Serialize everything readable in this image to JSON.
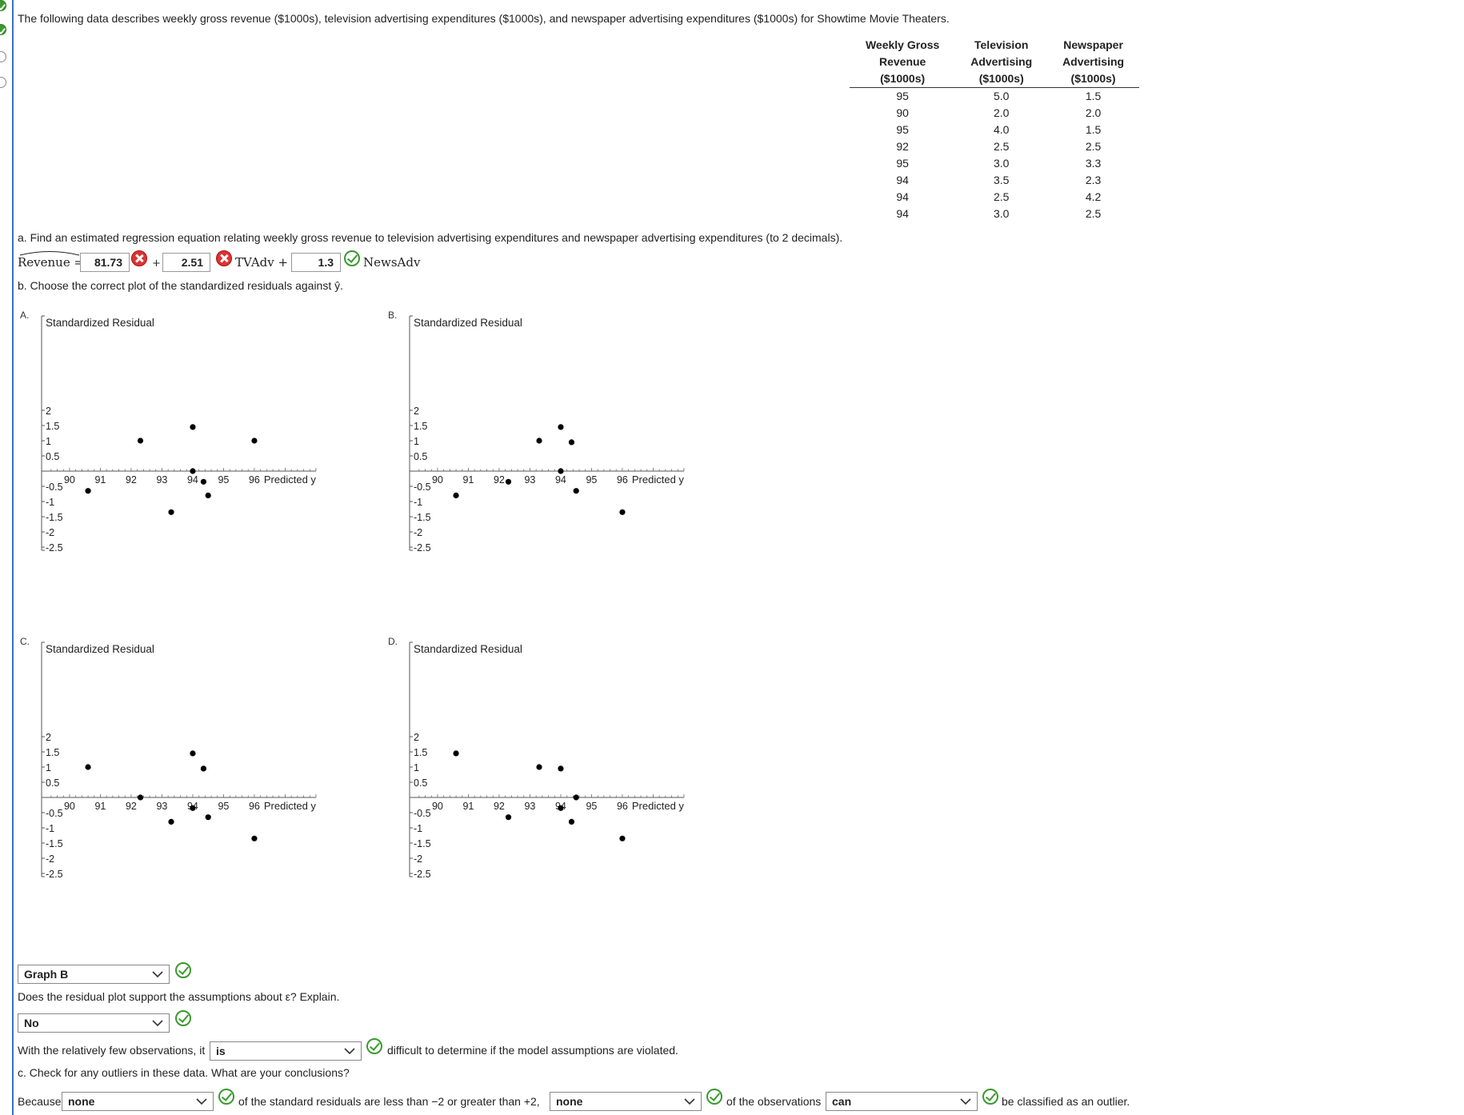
{
  "intro": "The following data describes weekly gross revenue ($1000s), television advertising expenditures ($1000s), and newspaper advertising expenditures ($1000s) for Showtime Movie Theaters.",
  "table": {
    "headers": [
      [
        "Weekly Gross",
        "Revenue",
        "($1000s)"
      ],
      [
        "Television",
        "Advertising",
        "($1000s)"
      ],
      [
        "Newspaper",
        "Advertising",
        "($1000s)"
      ]
    ],
    "rows": [
      [
        "95",
        "5.0",
        "1.5"
      ],
      [
        "90",
        "2.0",
        "2.0"
      ],
      [
        "95",
        "4.0",
        "1.5"
      ],
      [
        "92",
        "2.5",
        "2.5"
      ],
      [
        "95",
        "3.0",
        "3.3"
      ],
      [
        "94",
        "3.5",
        "2.3"
      ],
      [
        "94",
        "2.5",
        "4.2"
      ],
      [
        "94",
        "3.0",
        "2.5"
      ]
    ]
  },
  "part_a": {
    "question": "a. Find an estimated regression equation relating weekly gross revenue to television advertising expenditures and newspaper advertising expenditures (to 2 decimals).",
    "lhs": "Revenue =",
    "intercept": "81.73",
    "plus1": "+",
    "tv_coef": "2.51",
    "tv_label": "TVAdv +",
    "news_coef": "1.3",
    "news_label": "NewsAdv"
  },
  "part_b": {
    "question": "b. Choose the correct plot of the standardized residuals against ŷ.",
    "graph_select": "Graph B",
    "support_question": "Does the residual plot support the assumptions about ε? Explain.",
    "support_select": "No",
    "few_obs_prefix": "With the relatively few observations, it",
    "few_obs_select": "is",
    "few_obs_suffix": "difficult to determine if the model assumptions are violated."
  },
  "part_c": {
    "question": "c. Check for any outliers in these data. What are your conclusions?",
    "because": "Because",
    "select1": "none",
    "mid1": "of the standard residuals are less than −2 or greater than +2,",
    "select2": "none",
    "mid2": "of the observations",
    "select3": "can",
    "end": "be classified as an outlier."
  },
  "plots": {
    "ylabel": "Standardized Residual",
    "xlabel": "Predicted y",
    "y_ticks": [
      "2",
      "1.5",
      "1",
      "0.5",
      "-0.5",
      "-1",
      "-1.5",
      "-2",
      "-2.5"
    ],
    "x_ticks": [
      "90",
      "91",
      "92",
      "93",
      "94",
      "95",
      "96"
    ],
    "options": [
      {
        "letter": "A.",
        "points": [
          [
            90.6,
            -0.65
          ],
          [
            92.3,
            1.0
          ],
          [
            93.3,
            -1.35
          ],
          [
            94.0,
            1.45
          ],
          [
            94.0,
            0.0
          ],
          [
            94.35,
            -0.35
          ],
          [
            94.5,
            -0.8
          ],
          [
            96.0,
            1.0
          ]
        ]
      },
      {
        "letter": "B.",
        "points": [
          [
            90.6,
            -0.8
          ],
          [
            92.3,
            -0.35
          ],
          [
            93.3,
            1.0
          ],
          [
            94.0,
            1.45
          ],
          [
            94.0,
            0.0
          ],
          [
            94.35,
            0.95
          ],
          [
            94.5,
            -0.65
          ],
          [
            96.0,
            -1.35
          ]
        ]
      },
      {
        "letter": "C.",
        "points": [
          [
            90.6,
            1.0
          ],
          [
            92.3,
            0.0
          ],
          [
            93.3,
            -0.8
          ],
          [
            94.0,
            1.45
          ],
          [
            94.0,
            -0.35
          ],
          [
            94.35,
            0.95
          ],
          [
            94.5,
            -0.65
          ],
          [
            96.0,
            -1.35
          ]
        ]
      },
      {
        "letter": "D.",
        "points": [
          [
            90.6,
            1.45
          ],
          [
            92.3,
            -0.65
          ],
          [
            93.3,
            1.0
          ],
          [
            94.0,
            0.95
          ],
          [
            94.0,
            -0.35
          ],
          [
            94.35,
            -0.8
          ],
          [
            94.5,
            0.0
          ],
          [
            96.0,
            -1.35
          ]
        ]
      }
    ]
  }
}
